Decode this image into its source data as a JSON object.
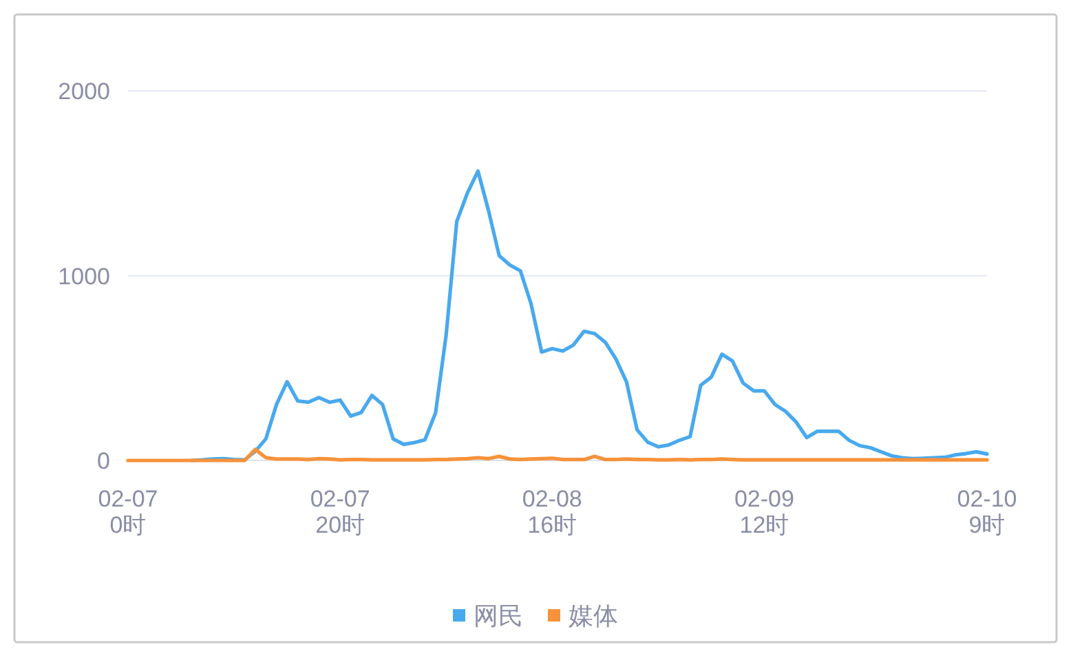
{
  "chart_data": {
    "type": "line",
    "categories": [
      "02-07\n0时",
      null,
      null,
      null,
      null,
      null,
      null,
      null,
      null,
      null,
      null,
      null,
      null,
      null,
      null,
      null,
      null,
      null,
      null,
      null,
      "02-07\n20时",
      null,
      null,
      null,
      null,
      null,
      null,
      null,
      null,
      null,
      null,
      null,
      null,
      null,
      null,
      null,
      null,
      null,
      null,
      null,
      "02-08\n16时",
      null,
      null,
      null,
      null,
      null,
      null,
      null,
      null,
      null,
      null,
      null,
      null,
      null,
      null,
      null,
      null,
      null,
      null,
      null,
      "02-09\n12时",
      null,
      null,
      null,
      null,
      null,
      null,
      null,
      null,
      null,
      null,
      null,
      null,
      null,
      null,
      null,
      null,
      null,
      null,
      null,
      null,
      "02-10\n9时"
    ],
    "series": [
      {
        "name": "网民",
        "color": "#49a9ee",
        "values": [
          null,
          null,
          null,
          null,
          null,
          null,
          0,
          3,
          8,
          10,
          5,
          3,
          50,
          117,
          303,
          426,
          322,
          315,
          340,
          315,
          327,
          240,
          260,
          352,
          303,
          117,
          87,
          97,
          112,
          258,
          680,
          1294,
          1447,
          1566,
          1350,
          1108,
          1058,
          1026,
          848,
          587,
          605,
          592,
          625,
          699,
          686,
          640,
          550,
          426,
          166,
          99,
          74,
          84,
          109,
          129,
          407,
          451,
          575,
          538,
          419,
          377,
          377,
          303,
          266,
          208,
          124,
          158,
          158,
          158,
          109,
          80,
          69,
          47,
          25,
          15,
          10,
          12,
          15,
          17,
          30,
          37,
          47,
          35
        ]
      },
      {
        "name": "媒体",
        "color": "#f7923a",
        "values": [
          0,
          0,
          0,
          0,
          0,
          0,
          0,
          0,
          0,
          0,
          0,
          0,
          60,
          15,
          8,
          8,
          8,
          5,
          10,
          8,
          3,
          5,
          5,
          3,
          3,
          3,
          3,
          3,
          3,
          5,
          5,
          8,
          10,
          15,
          10,
          22,
          8,
          5,
          8,
          10,
          12,
          5,
          5,
          5,
          22,
          5,
          5,
          8,
          5,
          5,
          3,
          3,
          5,
          3,
          5,
          5,
          8,
          5,
          3,
          3,
          3,
          3,
          3,
          3,
          3,
          3,
          3,
          3,
          3,
          3,
          3,
          3,
          3,
          3,
          3,
          3,
          3,
          3,
          3,
          3,
          3,
          3
        ]
      }
    ],
    "ylim": [
      0,
      2000
    ],
    "yticks": [
      0,
      1000,
      2000
    ],
    "grid": "y",
    "legend": "bottom"
  }
}
